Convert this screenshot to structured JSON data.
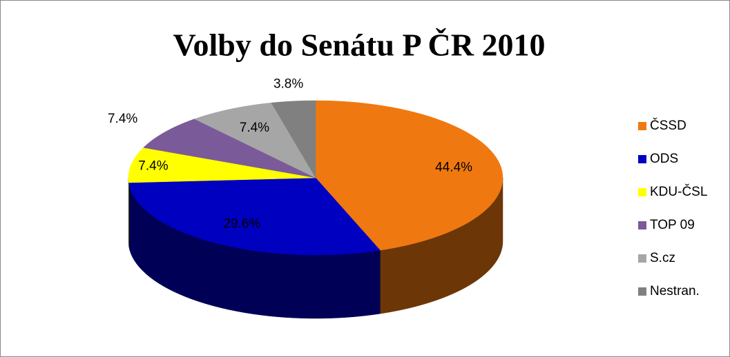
{
  "chart_data": {
    "type": "pie",
    "title": "Volby do Senátu P ČR 2010",
    "categories": [
      "ČSSD",
      "ODS",
      "KDU-ČSL",
      "TOP 09",
      "S.cz",
      "Nestran."
    ],
    "values": [
      44.4,
      29.6,
      7.4,
      7.4,
      7.4,
      3.8
    ],
    "value_labels": [
      "44.4%",
      "29.6%",
      "7.4%",
      "7.4%",
      "7.4%",
      "3.8%"
    ],
    "colors": [
      "#f07810",
      "#0000c0",
      "#ffff00",
      "#7b5a9a",
      "#a6a6a6",
      "#808080"
    ],
    "legend": "right"
  }
}
